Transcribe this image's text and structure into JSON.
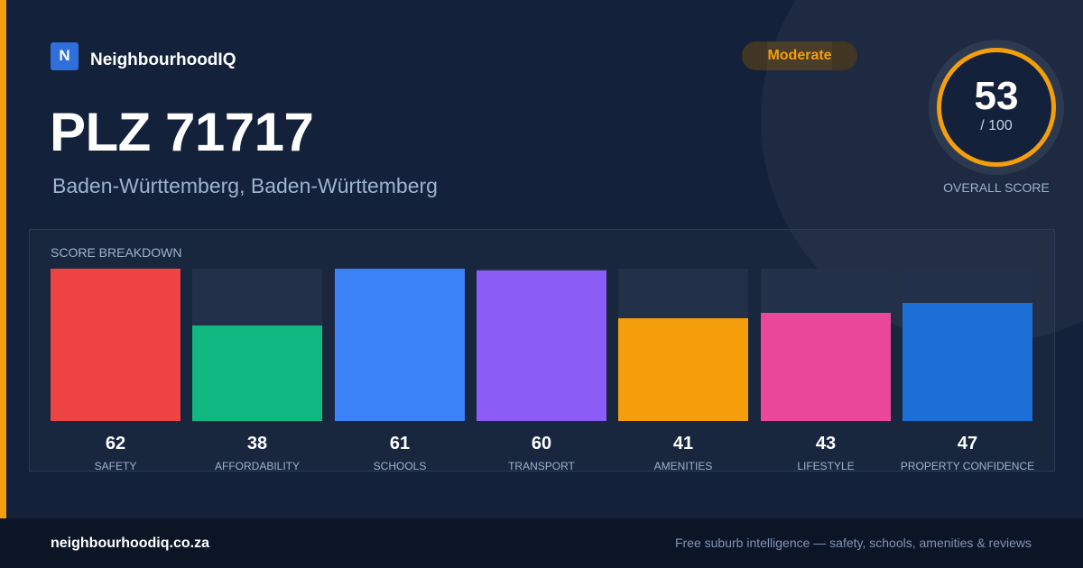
{
  "brand": {
    "logo_letter": "N",
    "name": "NeighbourhoodIQ"
  },
  "header": {
    "title": "PLZ 71717",
    "subtitle": "Baden-Württemberg, Baden-Württemberg"
  },
  "badge": {
    "label": "Moderate",
    "color": "#f59e0b"
  },
  "overall": {
    "value": "53",
    "max_label": "/ 100",
    "caption": "OVERALL SCORE"
  },
  "breakdown": {
    "heading": "SCORE BREAKDOWN",
    "items": [
      {
        "label": "SAFETY",
        "value": "62",
        "color": "#ef4444"
      },
      {
        "label": "AFFORDABILITY",
        "value": "38",
        "color": "#10b981"
      },
      {
        "label": "SCHOOLS",
        "value": "61",
        "color": "#3b82f6"
      },
      {
        "label": "TRANSPORT",
        "value": "60",
        "color": "#8b5cf6"
      },
      {
        "label": "AMENITIES",
        "value": "41",
        "color": "#f59e0b"
      },
      {
        "label": "LIFESTYLE",
        "value": "43",
        "color": "#ec4899"
      },
      {
        "label": "PROPERTY CONFIDENCE",
        "value": "47",
        "color": "#1d6fd8"
      }
    ]
  },
  "chart_data": {
    "type": "bar",
    "categories": [
      "SAFETY",
      "AFFORDABILITY",
      "SCHOOLS",
      "TRANSPORT",
      "AMENITIES",
      "LIFESTYLE",
      "PROPERTY CONFIDENCE"
    ],
    "values": [
      62,
      38,
      61,
      60,
      41,
      43,
      47
    ],
    "ylim": [
      0,
      100
    ],
    "title": "SCORE BREAKDOWN"
  },
  "footer": {
    "domain": "neighbourhoodiq.co.za",
    "tagline": "Free suburb intelligence — safety, schools, amenities & reviews"
  }
}
